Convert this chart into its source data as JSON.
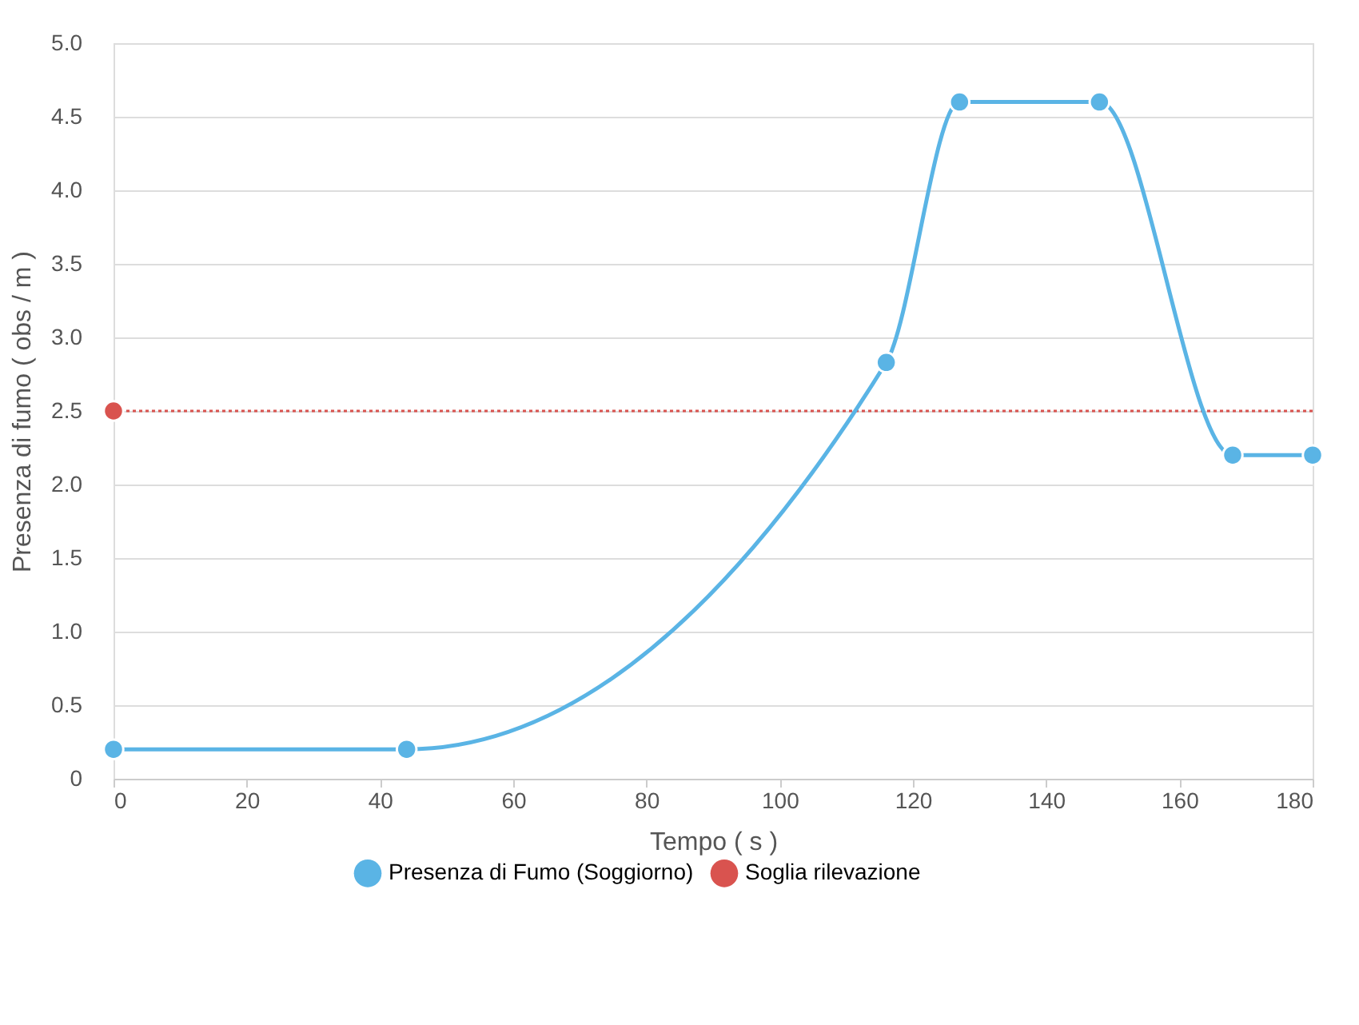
{
  "chart_data": {
    "type": "line",
    "xlabel": "Tempo ( s )",
    "ylabel": "Presenza di fumo ( obs / m )",
    "x": [
      0,
      44,
      116,
      127,
      148,
      168,
      180
    ],
    "series": [
      {
        "name": "Presenza di Fumo (Soggiorno)",
        "color": "#5ab4e5",
        "values": [
          0.2,
          0.2,
          2.83,
          4.6,
          4.6,
          2.2,
          2.2
        ]
      },
      {
        "name": "Soglia rilevazione",
        "color": "#d9534f",
        "type": "scatter",
        "x": [
          0
        ],
        "values": [
          2.5
        ]
      }
    ],
    "ref_lines": [
      {
        "axis": "y",
        "value": 2.5,
        "color": "#d9534f",
        "line_style": "dotted"
      }
    ],
    "xlim": [
      0,
      180
    ],
    "xticks": [
      0,
      20,
      40,
      60,
      80,
      100,
      120,
      140,
      160,
      180
    ],
    "ylim": [
      0,
      5
    ],
    "yticks": [
      0,
      {
        "value": 0.5,
        "label": "0.5"
      },
      {
        "value": 1,
        "label": "1.0"
      },
      {
        "value": 1.5,
        "label": "1.5"
      },
      {
        "value": 2,
        "label": "2.0"
      },
      {
        "value": 2.5,
        "label": "2.5"
      },
      {
        "value": 3,
        "label": "3.0"
      },
      {
        "value": 3.5,
        "label": "3.5"
      },
      {
        "value": 4,
        "label": "4.0"
      },
      {
        "value": 4.5,
        "label": "4.5"
      },
      {
        "value": 5,
        "label": "5.0"
      }
    ],
    "grid": "y",
    "legend": "bottom",
    "marker": "circle",
    "line_style": "solid"
  }
}
